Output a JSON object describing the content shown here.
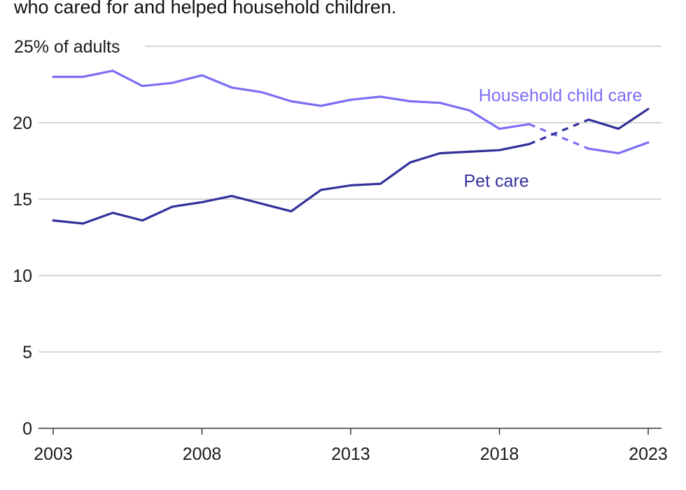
{
  "chart_data": {
    "type": "line",
    "title": "who cared for and helped household children.",
    "ylabel": "25% of adults",
    "xlabel": "",
    "ylim": [
      0,
      25
    ],
    "xlim": [
      2003,
      2023
    ],
    "y_ticks": [
      {
        "value": 0,
        "label": "0"
      },
      {
        "value": 5,
        "label": "5"
      },
      {
        "value": 10,
        "label": "10"
      },
      {
        "value": 15,
        "label": "15"
      },
      {
        "value": 20,
        "label": "20"
      },
      {
        "value": 25,
        "label": "25% of adults"
      }
    ],
    "x_ticks": [
      {
        "value": 2003,
        "label": "2003"
      },
      {
        "value": 2008,
        "label": "2008"
      },
      {
        "value": 2013,
        "label": "2013"
      },
      {
        "value": 2018,
        "label": "2018"
      },
      {
        "value": 2023,
        "label": "2023"
      }
    ],
    "grid": true,
    "series": [
      {
        "name": "Household child care",
        "color": "#7b6ef6",
        "solid_before": [
          [
            2003,
            23.0
          ],
          [
            2004,
            23.0
          ],
          [
            2005,
            23.4
          ],
          [
            2006,
            22.4
          ],
          [
            2007,
            22.6
          ],
          [
            2008,
            23.1
          ],
          [
            2009,
            22.3
          ],
          [
            2010,
            22.0
          ],
          [
            2011,
            21.4
          ],
          [
            2012,
            21.1
          ],
          [
            2013,
            21.5
          ],
          [
            2014,
            21.7
          ],
          [
            2015,
            21.4
          ],
          [
            2016,
            21.3
          ],
          [
            2017,
            20.8
          ],
          [
            2018,
            19.6
          ],
          [
            2019,
            19.9
          ]
        ],
        "dashed": [
          [
            2019,
            19.9
          ],
          [
            2021,
            18.3
          ]
        ],
        "solid_after": [
          [
            2021,
            18.3
          ],
          [
            2022,
            18.0
          ],
          [
            2023,
            18.7
          ]
        ]
      },
      {
        "name": "Pet care",
        "color": "#33309a",
        "solid_before": [
          [
            2003,
            13.6
          ],
          [
            2004,
            13.4
          ],
          [
            2005,
            14.1
          ],
          [
            2006,
            13.6
          ],
          [
            2007,
            14.5
          ],
          [
            2008,
            14.8
          ],
          [
            2009,
            15.2
          ],
          [
            2010,
            14.7
          ],
          [
            2011,
            14.2
          ],
          [
            2012,
            15.6
          ],
          [
            2013,
            15.9
          ],
          [
            2014,
            16.0
          ],
          [
            2015,
            17.4
          ],
          [
            2016,
            18.0
          ],
          [
            2017,
            18.1
          ],
          [
            2018,
            18.2
          ],
          [
            2019,
            18.6
          ]
        ],
        "dashed": [
          [
            2019,
            18.6
          ],
          [
            2021,
            20.2
          ]
        ],
        "solid_after": [
          [
            2021,
            20.2
          ],
          [
            2022,
            19.6
          ],
          [
            2023,
            20.9
          ]
        ]
      }
    ],
    "annotations": [
      {
        "text": "Household child care",
        "series": "Household child care",
        "anchor": [
          2017.3,
          21.4
        ]
      },
      {
        "text": "Pet care",
        "series": "Pet care",
        "anchor": [
          2016.8,
          15.8
        ]
      }
    ],
    "colors": {
      "grid": "#bdbdbd",
      "axis": "#333333"
    }
  }
}
